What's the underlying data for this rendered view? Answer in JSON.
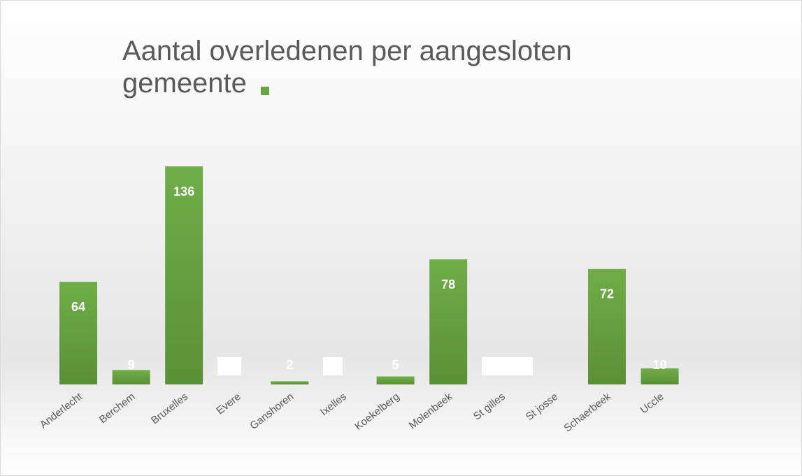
{
  "chart_data": {
    "type": "bar",
    "title": "Aantal overledenen per aangesloten gemeente",
    "categories": [
      "Anderlecht",
      "Berchem",
      "Bruxelles",
      "Evere",
      "Ganshoren",
      "Ixelles",
      "Koekelberg",
      "Molenbeek",
      "St gilles",
      "St josse",
      "Schaerbeek",
      "Uccle"
    ],
    "values": [
      64,
      9,
      136,
      null,
      2,
      null,
      5,
      78,
      null,
      null,
      72,
      10
    ],
    "color": "#6aa343"
  }
}
